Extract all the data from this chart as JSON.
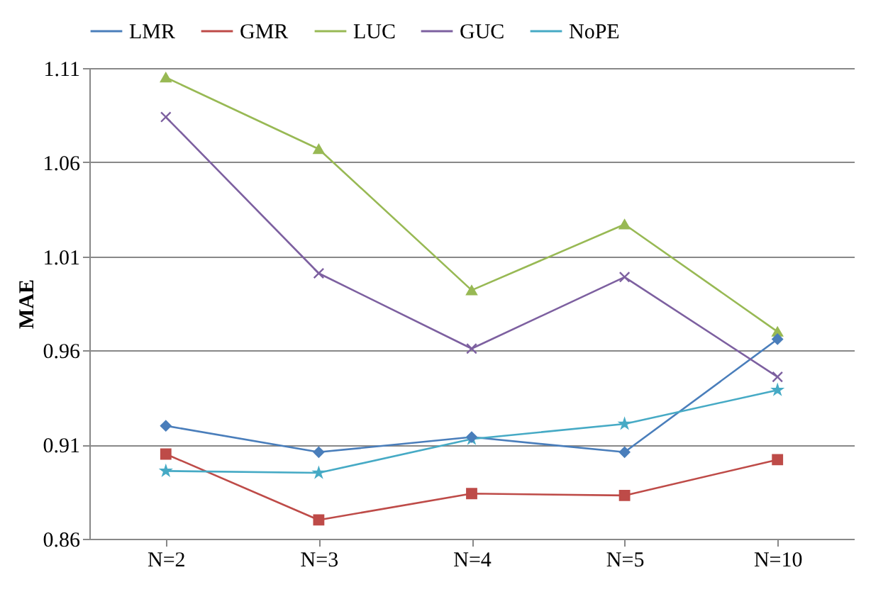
{
  "chart_data": {
    "type": "line",
    "ylabel": "MAE",
    "categories": [
      "N=2",
      "N=3",
      "N=4",
      "N=5",
      "N=10"
    ],
    "series": [
      {
        "name": "LMR",
        "color": "#4a7ebb",
        "marker": "diamond",
        "values": [
          0.92,
          0.906,
          0.914,
          0.906,
          0.966
        ]
      },
      {
        "name": "GMR",
        "color": "#be4b48",
        "marker": "square",
        "values": [
          0.905,
          0.87,
          0.884,
          0.883,
          0.902
        ]
      },
      {
        "name": "LUC",
        "color": "#98b954",
        "marker": "triangle",
        "values": [
          1.105,
          1.067,
          0.992,
          1.027,
          0.97
        ]
      },
      {
        "name": "GUC",
        "color": "#7d60a0",
        "marker": "cross",
        "values": [
          1.084,
          1.001,
          0.961,
          0.999,
          0.946
        ]
      },
      {
        "name": "NoPE",
        "color": "#46aac5",
        "marker": "star",
        "values": [
          0.896,
          0.895,
          0.913,
          0.921,
          0.939
        ]
      }
    ],
    "ylim": [
      0.86,
      1.11
    ],
    "yticks": [
      0.86,
      0.91,
      0.96,
      1.01,
      1.06,
      1.11
    ],
    "grid": "y",
    "legend": "top"
  }
}
